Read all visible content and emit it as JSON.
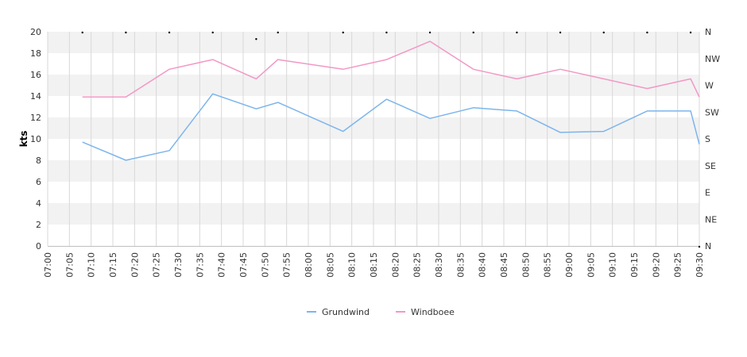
{
  "chart_data": {
    "type": "line",
    "title": "",
    "xlabel": "",
    "ylabel": "kts",
    "ylim": [
      0,
      20
    ],
    "y_ticks": [
      0,
      2,
      4,
      6,
      8,
      10,
      12,
      14,
      16,
      18,
      20
    ],
    "x_range": [
      "07:00",
      "09:30"
    ],
    "x_ticks": [
      "07:00",
      "07:05",
      "07:10",
      "07:15",
      "07:20",
      "07:25",
      "07:30",
      "07:35",
      "07:40",
      "07:45",
      "07:50",
      "07:55",
      "08:00",
      "08:05",
      "08:10",
      "08:15",
      "08:20",
      "08:25",
      "08:30",
      "08:35",
      "08:40",
      "08:45",
      "08:50",
      "08:55",
      "09:00",
      "09:05",
      "09:10",
      "09:15",
      "09:20",
      "09:25",
      "09:30"
    ],
    "y2_ticks": [
      "N",
      "NW",
      "W",
      "SW",
      "S",
      "SE",
      "E",
      "NE",
      "N"
    ],
    "grid": true,
    "legend_position": "bottom",
    "series": [
      {
        "name": "Grundwind",
        "color": "#7cb5ec",
        "x": [
          "07:08",
          "07:18",
          "07:28",
          "07:38",
          "07:48",
          "07:53",
          "08:08",
          "08:18",
          "08:28",
          "08:38",
          "08:48",
          "08:58",
          "09:08",
          "09:18",
          "09:28",
          "09:30"
        ],
        "values": [
          9.7,
          8.0,
          8.9,
          14.2,
          12.8,
          13.4,
          10.7,
          13.7,
          11.9,
          12.9,
          12.6,
          10.6,
          10.7,
          12.6,
          12.6,
          9.5
        ]
      },
      {
        "name": "Windboee",
        "color": "#f397c6",
        "x": [
          "07:08",
          "07:18",
          "07:28",
          "07:38",
          "07:48",
          "07:53",
          "08:08",
          "08:18",
          "08:28",
          "08:38",
          "08:48",
          "08:58",
          "09:08",
          "09:18",
          "09:28",
          "09:30"
        ],
        "values": [
          13.9,
          13.9,
          16.5,
          17.4,
          15.6,
          17.4,
          16.5,
          17.4,
          19.1,
          16.5,
          15.6,
          16.5,
          15.6,
          14.7,
          15.6,
          13.9
        ]
      }
    ],
    "direction_markers": {
      "x": [
        "07:08",
        "07:18",
        "07:28",
        "07:38",
        "07:48",
        "07:53",
        "08:08",
        "08:18",
        "08:28",
        "08:38",
        "08:48",
        "08:58",
        "09:08",
        "09:18",
        "09:28",
        "09:30"
      ],
      "direction_deg": [
        0,
        0,
        0,
        0,
        11,
        0,
        0,
        0,
        0,
        0,
        0,
        0,
        0,
        0,
        0,
        360
      ]
    }
  }
}
